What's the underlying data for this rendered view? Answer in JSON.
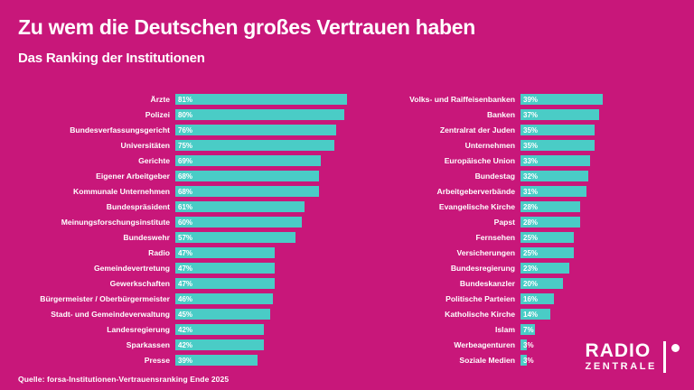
{
  "header": {
    "title": "Zu wem die Deutschen großes Vertrauen haben",
    "subtitle": "Das Ranking der Institutionen"
  },
  "source": "Quelle: forsa-Institutionen-Vertrauensranking Ende 2025",
  "logo": {
    "line1": "RADIO",
    "line2": "ZENTRALE"
  },
  "colors": {
    "background": "#C8177A",
    "bar": "#4ACCC6",
    "text": "#FFFFFF"
  },
  "chart_data": {
    "type": "bar",
    "orientation": "horizontal",
    "unit": "%",
    "xlim": [
      0,
      100
    ],
    "grid": false,
    "legend": false,
    "columns": [
      {
        "items": [
          {
            "label": "Ärzte",
            "value": 81
          },
          {
            "label": "Polizei",
            "value": 80
          },
          {
            "label": "Bundesverfassungsgericht",
            "value": 76
          },
          {
            "label": "Universitäten",
            "value": 75
          },
          {
            "label": "Gerichte",
            "value": 69
          },
          {
            "label": "Eigener Arbeitgeber",
            "value": 68
          },
          {
            "label": "Kommunale Unternehmen",
            "value": 68
          },
          {
            "label": "Bundespräsident",
            "value": 61
          },
          {
            "label": "Meinungsforschungsinstitute",
            "value": 60
          },
          {
            "label": "Bundeswehr",
            "value": 57
          },
          {
            "label": "Radio",
            "value": 47
          },
          {
            "label": "Gemeindevertretung",
            "value": 47
          },
          {
            "label": "Gewerkschaften",
            "value": 47
          },
          {
            "label": "Bürgermeister / Oberbürgermeister",
            "value": 46
          },
          {
            "label": "Stadt- und Gemeindeverwaltung",
            "value": 45
          },
          {
            "label": "Landesregierung",
            "value": 42
          },
          {
            "label": "Sparkassen",
            "value": 42
          },
          {
            "label": "Presse",
            "value": 39
          }
        ]
      },
      {
        "items": [
          {
            "label": "Volks- und Raiffeisenbanken",
            "value": 39
          },
          {
            "label": "Banken",
            "value": 37
          },
          {
            "label": "Zentralrat der Juden",
            "value": 35
          },
          {
            "label": "Unternehmen",
            "value": 35
          },
          {
            "label": "Europäische Union",
            "value": 33
          },
          {
            "label": "Bundestag",
            "value": 32
          },
          {
            "label": "Arbeitgeberverbände",
            "value": 31
          },
          {
            "label": "Evangelische Kirche",
            "value": 28
          },
          {
            "label": "Papst",
            "value": 28
          },
          {
            "label": "Fernsehen",
            "value": 25
          },
          {
            "label": "Versicherungen",
            "value": 25
          },
          {
            "label": "Bundesregierung",
            "value": 23
          },
          {
            "label": "Bundeskanzler",
            "value": 20
          },
          {
            "label": "Politische Parteien",
            "value": 16
          },
          {
            "label": "Katholische Kirche",
            "value": 14
          },
          {
            "label": "Islam",
            "value": 7
          },
          {
            "label": "Werbeagenturen",
            "value": 3
          },
          {
            "label": "Soziale Medien",
            "value": 3
          }
        ]
      }
    ]
  }
}
